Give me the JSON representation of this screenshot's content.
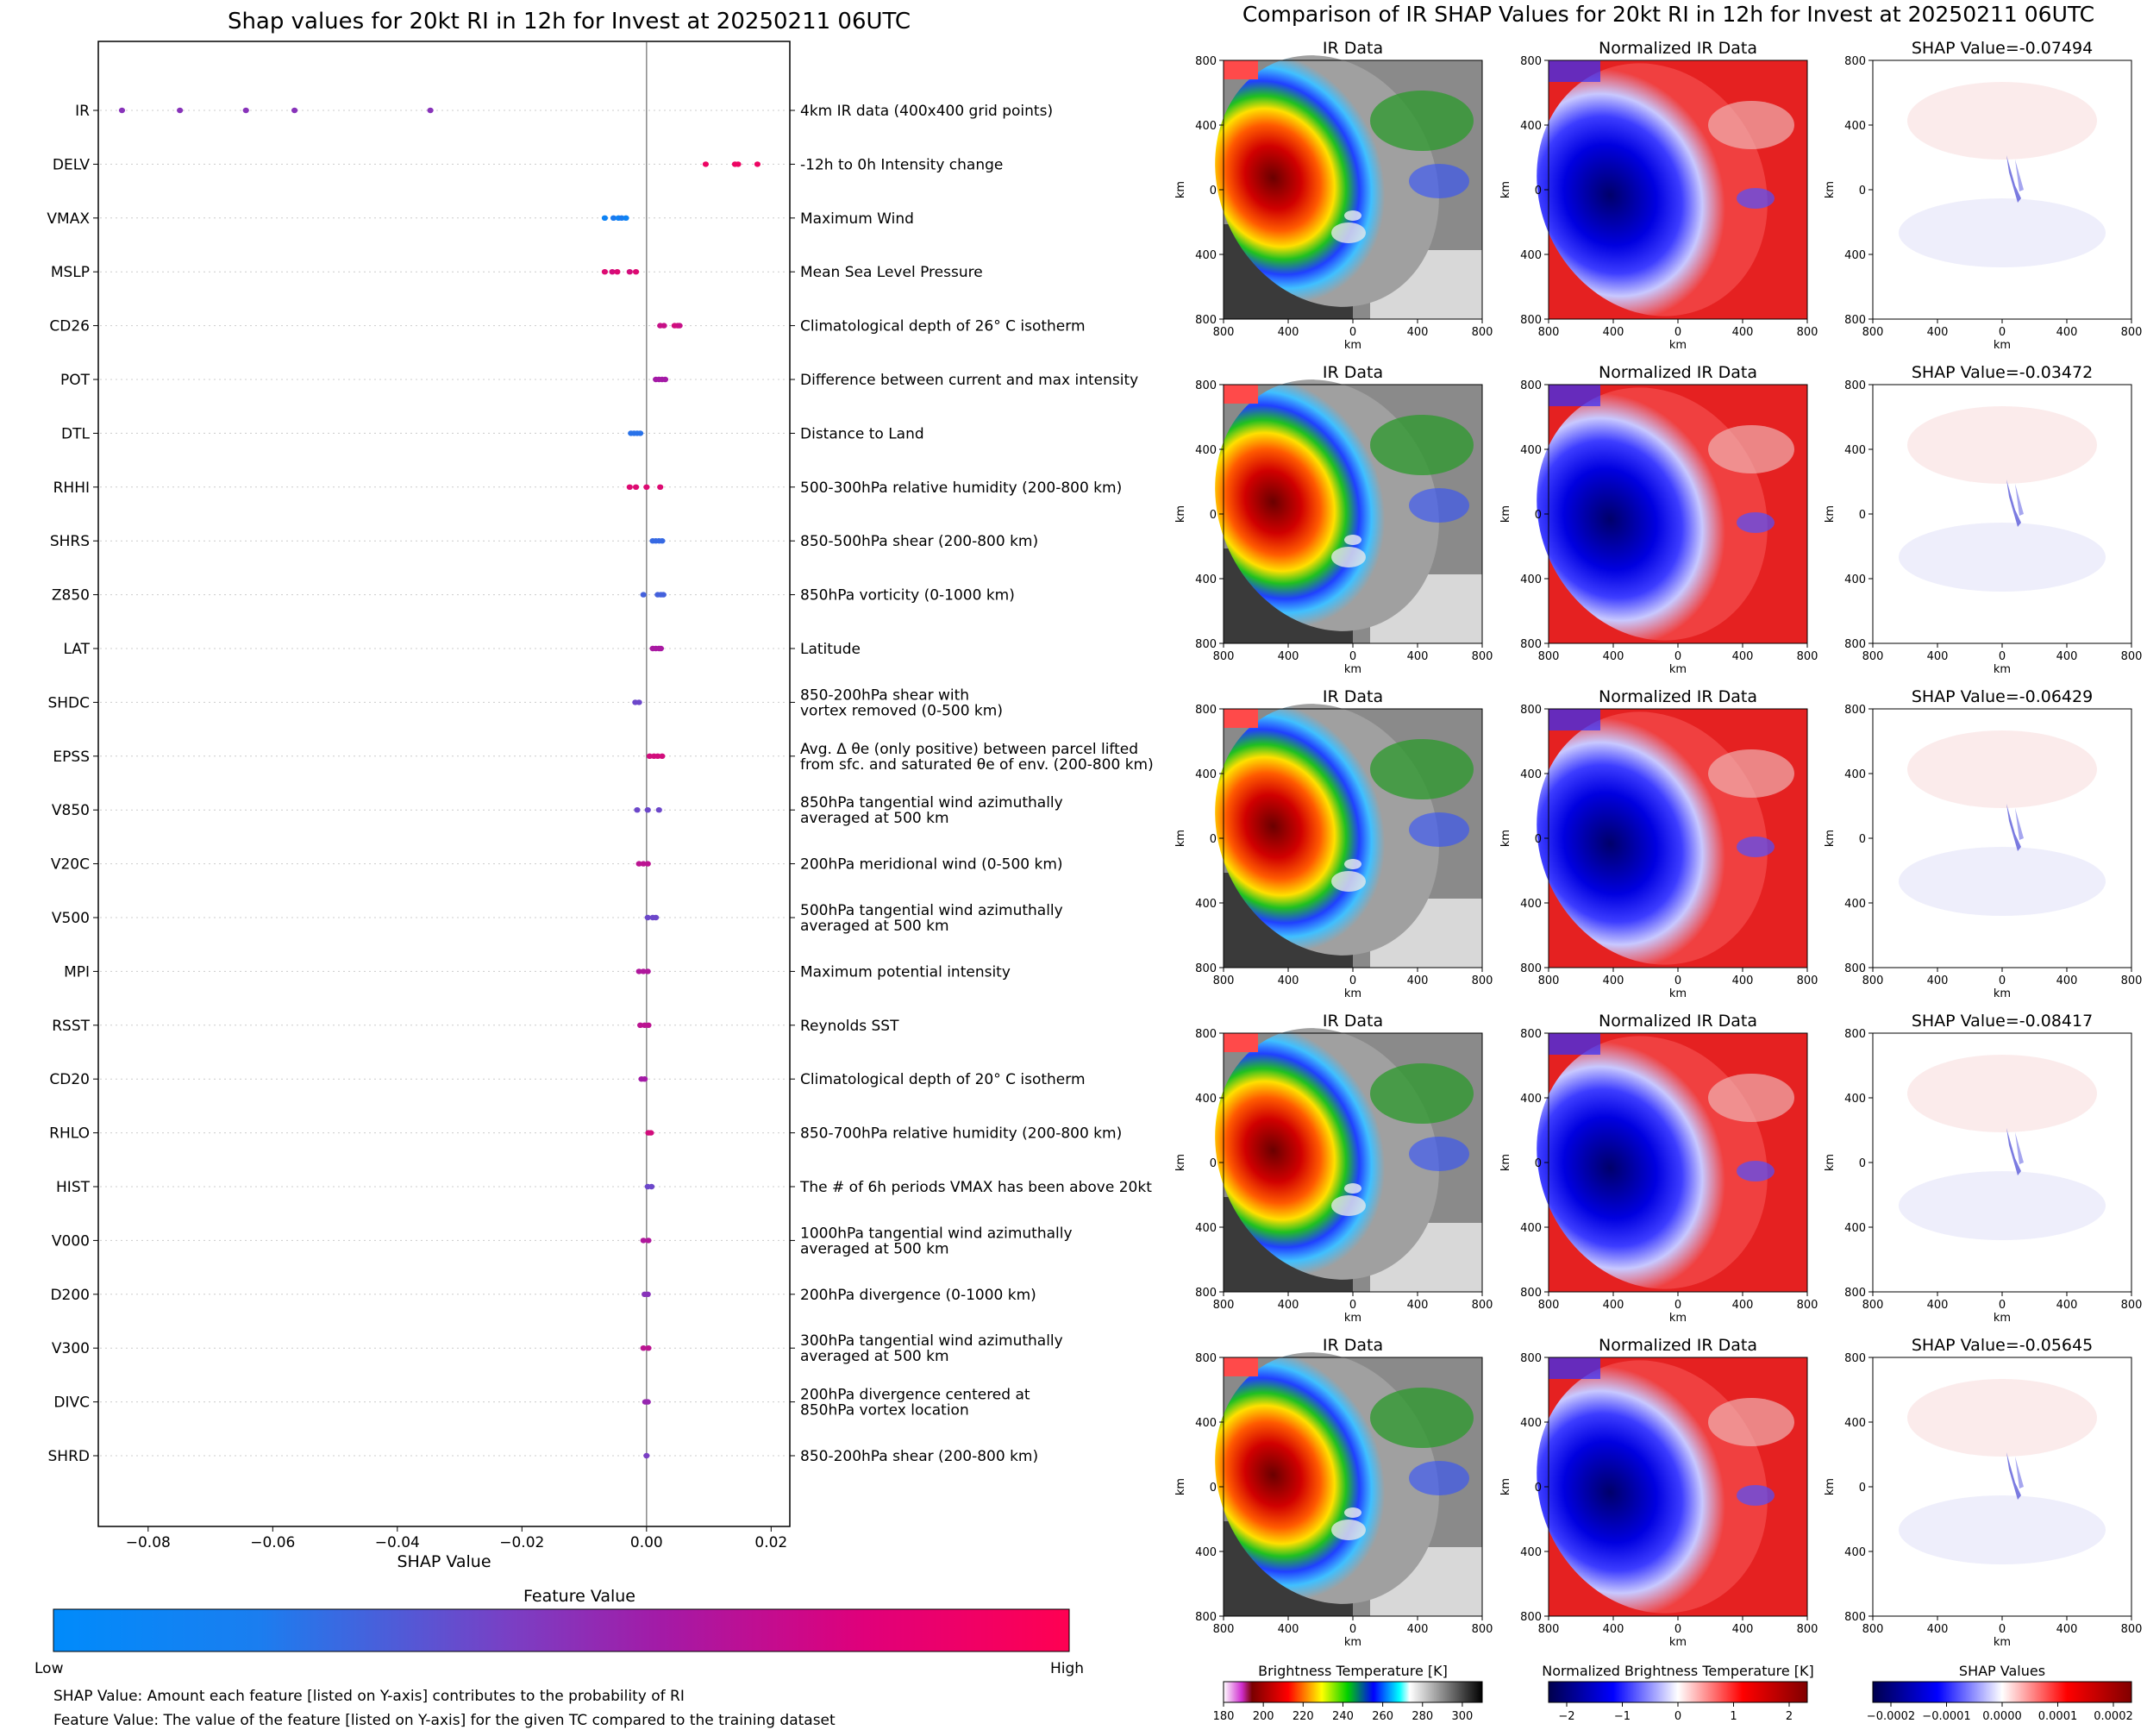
{
  "left_title": "Shap values for 20kt RI in 12h for Invest at 20250211 06UTC",
  "right_title": "Comparison of IR SHAP Values for 20kt RI in 12h for Invest at 20250211 06UTC",
  "colors": {
    "low": "#008bfb",
    "mid": "#8a2bb6",
    "high": "#ff0052",
    "zero_line": "#888888",
    "grid_dots": "#cccccc"
  },
  "colorbar": {
    "title": "Feature Value",
    "low_label": "Low",
    "high_label": "High"
  },
  "footnotes": [
    "SHAP Value: Amount each feature [listed on Y-axis] contributes to the probability of RI",
    "Feature Value: The value of the feature [listed on Y-axis] for the given TC compared to the training dataset"
  ],
  "chart_data": {
    "type": "scatter",
    "title": "Shap values for 20kt RI in 12h for Invest at 20250211 06UTC",
    "xlabel": "SHAP Value",
    "xlim": [
      -0.088,
      0.023
    ],
    "xticks": [
      -0.08,
      -0.06,
      -0.04,
      -0.02,
      0.0,
      0.02
    ],
    "xtick_labels": [
      "−0.08",
      "−0.06",
      "−0.04",
      "−0.02",
      "0.00",
      "0.02"
    ],
    "grid": "dotted horizontal per feature",
    "features": [
      {
        "name": "IR",
        "desc": [
          "4km IR data (400x400 grid points)"
        ],
        "values": [
          -0.0842,
          -0.0749,
          -0.0643,
          -0.0565,
          -0.0347
        ],
        "fv": [
          0.5,
          0.5,
          0.5,
          0.5,
          0.5
        ]
      },
      {
        "name": "DELV",
        "desc": [
          "-12h to 0h Intensity change"
        ],
        "values": [
          0.0095,
          0.0142,
          0.0147,
          0.0178
        ],
        "fv": [
          0.92,
          0.92,
          0.92,
          0.92
        ]
      },
      {
        "name": "VMAX",
        "desc": [
          "Maximum Wind"
        ],
        "values": [
          -0.0067,
          -0.0053,
          -0.0045,
          -0.004,
          -0.0033
        ],
        "fv": [
          0.05,
          0.1,
          0.05,
          0.1,
          0.05
        ]
      },
      {
        "name": "MSLP",
        "desc": [
          "Mean Sea Level Pressure"
        ],
        "values": [
          -0.0067,
          -0.0055,
          -0.0047,
          -0.0027,
          -0.0017
        ],
        "fv": [
          0.85,
          0.8,
          0.85,
          0.8,
          0.85
        ]
      },
      {
        "name": "CD26",
        "desc": [
          "Climatological depth of 26° C isotherm"
        ],
        "values": [
          0.0022,
          0.0028,
          0.0045,
          0.005,
          0.0053
        ],
        "fv": [
          0.75,
          0.75,
          0.8,
          0.8,
          0.75
        ]
      },
      {
        "name": "POT",
        "desc": [
          "Difference between current and max intensity"
        ],
        "values": [
          0.0015,
          0.002,
          0.0025,
          0.003
        ],
        "fv": [
          0.6,
          0.6,
          0.6,
          0.6
        ]
      },
      {
        "name": "DTL",
        "desc": [
          "Distance to Land"
        ],
        "values": [
          -0.0025,
          -0.002,
          -0.0015,
          -0.001
        ],
        "fv": [
          0.15,
          0.15,
          0.15,
          0.15
        ]
      },
      {
        "name": "RHHI",
        "desc": [
          "500-300hPa relative humidity (200-800 km)"
        ],
        "values": [
          -0.0027,
          -0.0017,
          0.0,
          0.0022
        ],
        "fv": [
          0.85,
          0.85,
          0.85,
          0.85
        ]
      },
      {
        "name": "SHRS",
        "desc": [
          "850-500hPa shear (200-800 km)"
        ],
        "values": [
          0.001,
          0.0015,
          0.002,
          0.0025
        ],
        "fv": [
          0.2,
          0.2,
          0.2,
          0.2
        ]
      },
      {
        "name": "Z850",
        "desc": [
          "850hPa vorticity (0-1000 km)"
        ],
        "values": [
          -0.0005,
          0.0018,
          0.0023,
          0.0027
        ],
        "fv": [
          0.25,
          0.25,
          0.25,
          0.25
        ]
      },
      {
        "name": "LAT",
        "desc": [
          "Latitude"
        ],
        "values": [
          0.001,
          0.0015,
          0.002,
          0.0023
        ],
        "fv": [
          0.62,
          0.62,
          0.62,
          0.62
        ]
      },
      {
        "name": "SHDC",
        "desc": [
          "850-200hPa shear with",
          "vortex removed (0-500 km)"
        ],
        "values": [
          -0.0018,
          -0.0012
        ],
        "fv": [
          0.4,
          0.4
        ]
      },
      {
        "name": "EPSS",
        "desc": [
          "Avg. Δ θe (only positive) between parcel lifted",
          "from sfc. and saturated θe of env. (200-800 km)"
        ],
        "values": [
          0.0005,
          0.0012,
          0.0018,
          0.0025
        ],
        "fv": [
          0.8,
          0.8,
          0.8,
          0.8
        ]
      },
      {
        "name": "V850",
        "desc": [
          "850hPa tangential wind azimuthally",
          "averaged at 500 km"
        ],
        "values": [
          -0.0015,
          0.0002,
          0.002
        ],
        "fv": [
          0.4,
          0.4,
          0.4
        ]
      },
      {
        "name": "V20C",
        "desc": [
          "200hPa meridional wind (0-500 km)"
        ],
        "values": [
          -0.0012,
          -0.0005,
          0.0002
        ],
        "fv": [
          0.7,
          0.7,
          0.7
        ]
      },
      {
        "name": "V500",
        "desc": [
          "500hPa tangential wind azimuthally",
          "averaged at 500 km"
        ],
        "values": [
          0.0002,
          0.001,
          0.0015
        ],
        "fv": [
          0.4,
          0.4,
          0.4
        ]
      },
      {
        "name": "MPI",
        "desc": [
          "Maximum potential intensity"
        ],
        "values": [
          -0.0012,
          -0.0005,
          0.0002
        ],
        "fv": [
          0.65,
          0.65,
          0.65
        ]
      },
      {
        "name": "RSST",
        "desc": [
          "Reynolds SST"
        ],
        "values": [
          -0.001,
          -0.0003,
          0.0003
        ],
        "fv": [
          0.7,
          0.7,
          0.7
        ]
      },
      {
        "name": "CD20",
        "desc": [
          "Climatological depth of 20° C isotherm"
        ],
        "values": [
          -0.0008,
          -0.0003
        ],
        "fv": [
          0.6,
          0.6
        ]
      },
      {
        "name": "RHLO",
        "desc": [
          "850-700hPa relative humidity (200-800 km)"
        ],
        "values": [
          0.0003,
          0.0007
        ],
        "fv": [
          0.8,
          0.8
        ]
      },
      {
        "name": "HIST",
        "desc": [
          "The # of 6h periods VMAX has been above 20kt"
        ],
        "values": [
          0.0002,
          0.0008
        ],
        "fv": [
          0.4,
          0.4
        ]
      },
      {
        "name": "V000",
        "desc": [
          "1000hPa tangential wind azimuthally",
          "averaged at 500 km"
        ],
        "values": [
          -0.0005,
          0.0003
        ],
        "fv": [
          0.65,
          0.65
        ]
      },
      {
        "name": "D200",
        "desc": [
          "200hPa divergence (0-1000 km)"
        ],
        "values": [
          -0.0003,
          0.0002
        ],
        "fv": [
          0.5,
          0.5
        ]
      },
      {
        "name": "V300",
        "desc": [
          "300hPa tangential wind azimuthally",
          "averaged at 500 km"
        ],
        "values": [
          -0.0005,
          0.0003
        ],
        "fv": [
          0.7,
          0.7
        ]
      },
      {
        "name": "DIVC",
        "desc": [
          "200hPa divergence centered at",
          "850hPa vortex location"
        ],
        "values": [
          -0.0002,
          0.0002
        ],
        "fv": [
          0.55,
          0.55
        ]
      },
      {
        "name": "SHRD",
        "desc": [
          "850-200hPa shear (200-800 km)"
        ],
        "values": [
          0.0
        ],
        "fv": [
          0.45
        ]
      }
    ]
  },
  "panels": {
    "column_titles": [
      "IR Data",
      "Normalized IR Data"
    ],
    "shap_titles": [
      "SHAP Value=-0.07494",
      "SHAP Value=-0.03472",
      "SHAP Value=-0.06429",
      "SHAP Value=-0.08417",
      "SHAP Value=-0.05645"
    ],
    "axis_unit": "km",
    "y_ticks": [
      "800",
      "400",
      "0",
      "400",
      "800"
    ],
    "x_ticks": [
      "800",
      "400",
      "0",
      "400",
      "800"
    ],
    "colorbars": [
      {
        "title": "Brightness Temperature [K]",
        "ticks": [
          "180",
          "200",
          "220",
          "240",
          "260",
          "280",
          "300"
        ]
      },
      {
        "title": "Normalized Brightness Temperature [K]",
        "ticks": [
          "−2",
          "−1",
          "0",
          "1",
          "2"
        ]
      },
      {
        "title": "SHAP Values",
        "ticks": [
          "−0.0002",
          "−0.0001",
          "0.0000",
          "0.0001",
          "0.0002"
        ]
      }
    ]
  }
}
